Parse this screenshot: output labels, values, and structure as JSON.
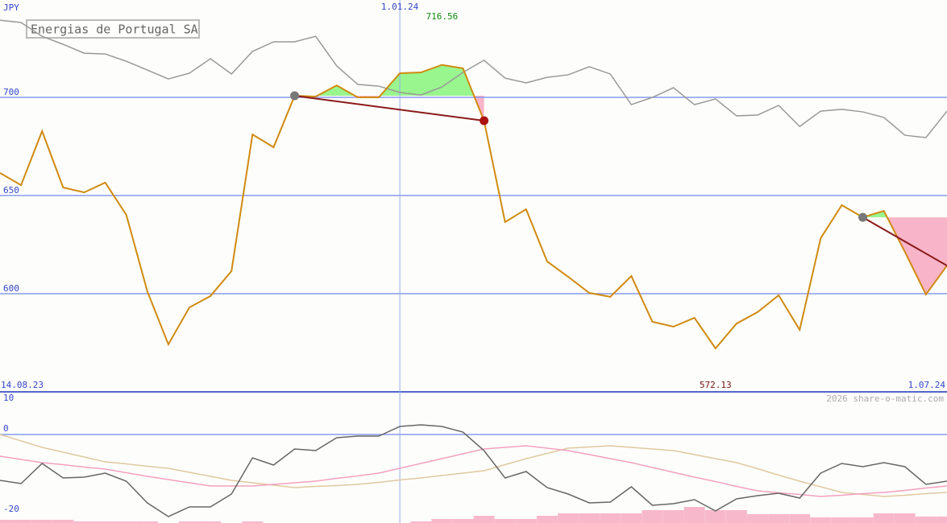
{
  "chart_data": [
    {
      "type": "line",
      "title": "Energias de Portugal SA",
      "ylabel": "JPY",
      "ylim": [
        550,
        750
      ],
      "yticks": [
        600,
        650,
        700
      ],
      "grid": true,
      "xlim": [
        0,
        45
      ],
      "xticks": [
        {
          "value": 0,
          "label": "14.08.23"
        },
        {
          "value": 19,
          "label": "1.01.24"
        },
        {
          "value": 45,
          "label": "1.07.24"
        }
      ],
      "series": [
        {
          "color": "#d08a10",
          "values": [
            661.5,
            655.3,
            682.8,
            654.1,
            651.6,
            656.6,
            640.2,
            601.2,
            574.2,
            593.0,
            598.8,
            611.5,
            681.1,
            674.6,
            700.8,
            700.4,
            706.1,
            700,
            700,
            712.3,
            712.7,
            716.56,
            714.8,
            688.1,
            636.5,
            643.0,
            616.4,
            608.6,
            600.4,
            598.4,
            609.0,
            585.7,
            583.2,
            587.7,
            572.13,
            584.8,
            590.6,
            599.2,
            581.6,
            628.3,
            645.1,
            638.9,
            642.2,
            621.3,
            599.6,
            614.3
          ]
        },
        {
          "color": "#999999",
          "values": [
            739.3,
            738.1,
            731.1,
            727.0,
            722.5,
            722.1,
            718.4,
            713.9,
            709.4,
            712.3,
            719.7,
            711.9,
            723.4,
            728.3,
            728.3,
            731.1,
            716.0,
            706.6,
            705.7,
            702.5,
            701.2,
            705.3,
            712.7,
            718.9,
            709.8,
            707.4,
            710.2,
            711.5,
            715.6,
            711.9,
            696.3,
            700,
            704.9,
            696.3,
            699.2,
            690.6,
            691.0,
            695.9,
            685.2,
            693.0,
            693.9,
            692.6,
            689.8,
            680.7,
            679.5,
            693.0
          ]
        }
      ],
      "trend_lines": [
        {
          "from": 14,
          "to": 23
        },
        {
          "from": 41,
          "to": 45
        }
      ],
      "trend_color": "#8b1a1a",
      "max_label": 716.56,
      "min_label": 572.13
    },
    {
      "type": "line",
      "ylim": [
        -22,
        10.6
      ],
      "yticks": [
        10,
        0,
        -20
      ],
      "series": [
        {
          "color": "#666666",
          "values": [
            -11.4,
            -12.2,
            -7.2,
            -10.8,
            -10.6,
            -9.6,
            -11.6,
            -17,
            -20.4,
            -18,
            -18,
            -14.8,
            -5.8,
            -7.6,
            -3.6,
            -4,
            -0.8,
            -0.4,
            -0.4,
            2,
            2.4,
            2,
            0.6,
            -4,
            -10.8,
            -9.2,
            -13.2,
            -14.8,
            -17,
            -16.8,
            -13,
            -17.6,
            -17.2,
            -16.2,
            -19,
            -16,
            -15.2,
            -14.6,
            -15.8,
            -9.6,
            -7.2,
            -8,
            -7,
            -8,
            -12.4,
            -11.6
          ]
        },
        {
          "color": "#f4a0c0",
          "values": [
            -5.4,
            -6.2,
            -7.0,
            -7.5,
            -8.1,
            -8.6,
            -9.5,
            -10.4,
            -11.2,
            -12.0,
            -12.8,
            -12.8,
            -12.8,
            -12.4,
            -12.0,
            -11.6,
            -10.9,
            -10.3,
            -9.6,
            -8.4,
            -7.2,
            -6.0,
            -4.8,
            -3.6,
            -3.2,
            -2.8,
            -3.4,
            -4.0,
            -5.0,
            -6.0,
            -7.0,
            -8.2,
            -9.4,
            -10.6,
            -11.7,
            -12.9,
            -14.0,
            -14.5,
            -14.9,
            -15.4,
            -15.1,
            -14.7,
            -14.4,
            -13.9,
            -13.3,
            -12.8
          ]
        },
        {
          "color": "#e0c8a0",
          "values": [
            0,
            -1.6,
            -3.2,
            -4.4,
            -5.6,
            -6.8,
            -7.3,
            -7.9,
            -8.4,
            -9.4,
            -10.4,
            -11.4,
            -12.0,
            -12.6,
            -13.2,
            -12.9,
            -12.7,
            -12.4,
            -11.9,
            -11.3,
            -10.8,
            -10.2,
            -9.6,
            -9.0,
            -7.5,
            -6.0,
            -4.7,
            -3.4,
            -3.1,
            -2.8,
            -3.2,
            -3.6,
            -4.0,
            -5.0,
            -6.0,
            -7.0,
            -8.5,
            -10.1,
            -11.6,
            -13.0,
            -14.4,
            -14.9,
            -15.4,
            -15.1,
            -14.7,
            -14.4
          ]
        }
      ]
    },
    {
      "type": "bar",
      "ylim": [
        0,
        40
      ],
      "color": "#f8b8cc",
      "values": [
        4,
        4,
        4,
        4,
        2,
        2,
        2,
        2,
        0,
        2,
        2,
        0,
        2,
        0,
        0,
        0,
        0,
        0,
        0,
        0,
        2,
        5,
        5,
        9,
        5,
        5,
        9,
        12,
        12,
        12,
        12,
        16,
        16,
        20,
        16,
        16,
        11,
        11,
        11,
        7,
        7,
        7,
        12,
        12,
        8,
        8
      ]
    }
  ],
  "credit": "2026 share-o-matic.com"
}
